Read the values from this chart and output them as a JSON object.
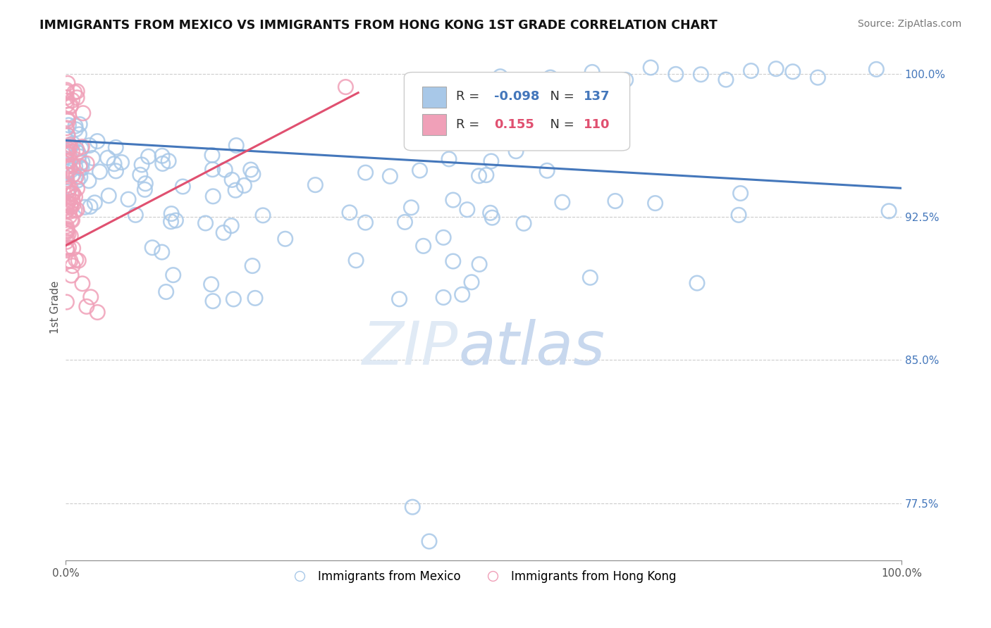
{
  "title": "IMMIGRANTS FROM MEXICO VS IMMIGRANTS FROM HONG KONG 1ST GRADE CORRELATION CHART",
  "source": "Source: ZipAtlas.com",
  "ylabel": "1st Grade",
  "legend_label1": "Immigrants from Mexico",
  "legend_label2": "Immigrants from Hong Kong",
  "R1": -0.098,
  "N1": 137,
  "R2": 0.155,
  "N2": 110,
  "blue_color": "#a8c8e8",
  "pink_color": "#f0a0b8",
  "blue_line_color": "#4477bb",
  "pink_line_color": "#e05070",
  "blue_trend": [
    0.0,
    0.965,
    1.0,
    0.94
  ],
  "pink_trend": [
    0.0,
    0.91,
    0.35,
    0.99
  ],
  "xlim": [
    0.0,
    1.0
  ],
  "ylim": [
    0.745,
    1.01
  ],
  "yticks": [
    0.775,
    0.85,
    0.925,
    1.0
  ],
  "ytick_labels": [
    "77.5%",
    "85.0%",
    "92.5%",
    "100.0%"
  ],
  "xtick_labels": [
    "0.0%",
    "100.0%"
  ],
  "bg_color": "#ffffff",
  "grid_color": "#cccccc"
}
